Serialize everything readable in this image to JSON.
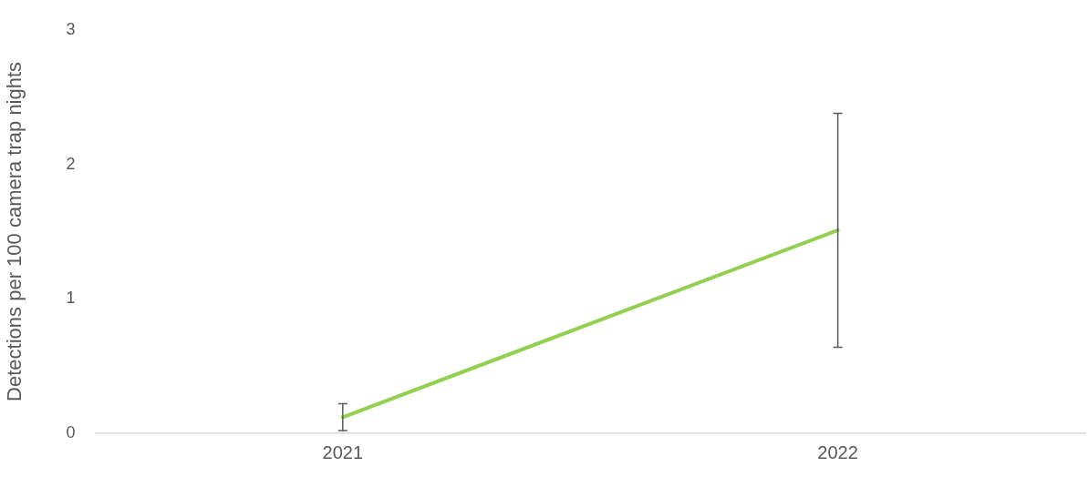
{
  "chart_data": {
    "type": "line",
    "ylabel": "Detections per 100 camera trap nights",
    "categories": [
      "2021",
      "2022"
    ],
    "series": [
      {
        "color": "#92d050",
        "values": [
          0.12,
          1.51
        ],
        "errors": [
          [
            0.02,
            0.22
          ],
          [
            0.64,
            2.38
          ]
        ]
      }
    ],
    "ylim": [
      0,
      3
    ],
    "yticks": [
      0,
      1,
      2,
      3
    ],
    "grid": false,
    "legend": false,
    "marker": "none",
    "line_style": "solid"
  }
}
